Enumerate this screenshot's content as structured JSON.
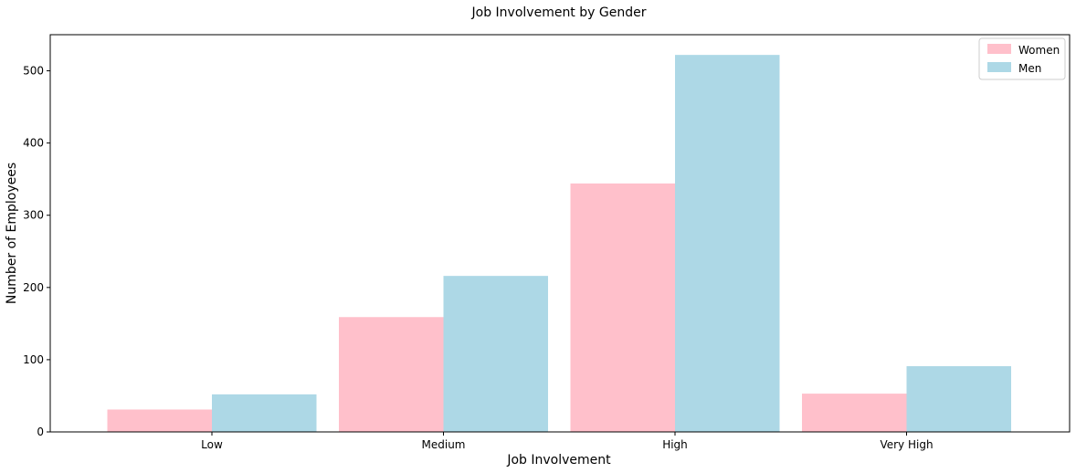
{
  "chart_data": {
    "type": "bar",
    "title": "Job Involvement by Gender",
    "xlabel": "Job Involvement",
    "ylabel": "Number of Employees",
    "categories": [
      "Low",
      "Medium",
      "High",
      "Very High"
    ],
    "series": [
      {
        "name": "Women",
        "color": "#ffc0cb",
        "values": [
          31,
          159,
          344,
          53
        ]
      },
      {
        "name": "Men",
        "color": "#add8e6",
        "values": [
          52,
          216,
          522,
          91
        ]
      }
    ],
    "ylim": [
      0,
      550
    ],
    "yticks": [
      0,
      100,
      200,
      300,
      400,
      500
    ],
    "grid": false,
    "legend": "top-right"
  }
}
